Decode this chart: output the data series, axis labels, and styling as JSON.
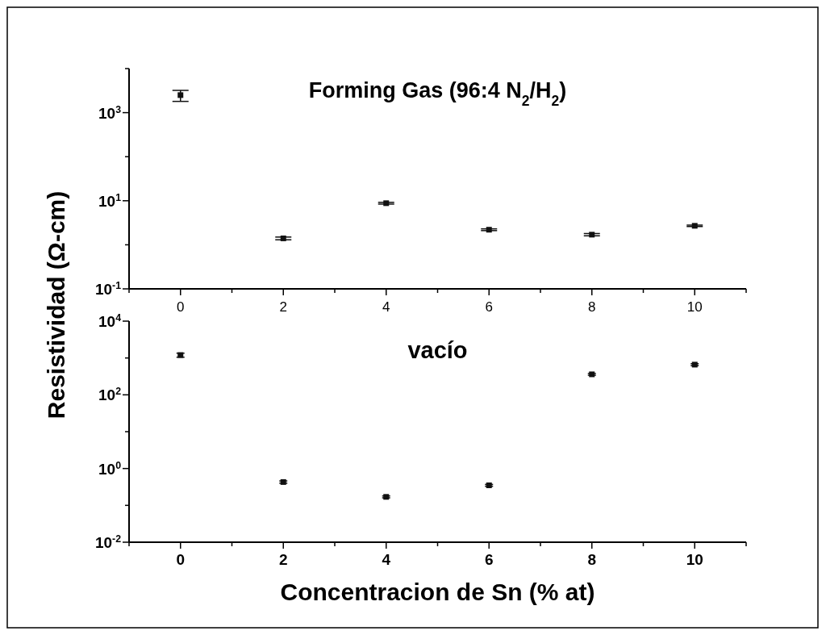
{
  "chart_data": [
    {
      "type": "scatter",
      "title": "Forming Gas (96:4 N$_{2}$/H$_{2}$)",
      "ylabel": "Resistividad (Ω-cm)",
      "x": [
        0,
        2,
        4,
        6,
        8,
        10
      ],
      "log": "y",
      "marker": "square",
      "color": "#111111",
      "values": [
        2500,
        1.4,
        8.8,
        2.2,
        1.7,
        2.7
      ],
      "errors": [
        [
          1800,
          3200
        ],
        [
          1.3,
          1.5
        ],
        [
          8.4,
          9.2
        ],
        [
          2.1,
          2.3
        ],
        [
          1.6,
          1.8
        ],
        [
          2.6,
          2.8
        ]
      ],
      "xlim": [
        -1,
        11
      ],
      "xticks": [
        {
          "value": -1,
          "label": null
        },
        0,
        {
          "value": 1,
          "label": null
        },
        2,
        {
          "value": 3,
          "label": null
        },
        4,
        {
          "value": 5,
          "label": null
        },
        6,
        {
          "value": 7,
          "label": null
        },
        8,
        {
          "value": 9,
          "label": null
        },
        10,
        {
          "value": 11,
          "label": null
        }
      ],
      "ylim": [
        0.1,
        10000
      ],
      "yticks": [
        {
          "value": 0.1,
          "label": "10$^{-1}$"
        },
        {
          "value": 1,
          "label": null
        },
        {
          "value": 10,
          "label": "10$^{1}$"
        },
        {
          "value": 100,
          "label": null
        },
        {
          "value": 1000,
          "label": "10$^{3}$"
        },
        {
          "value": 10000,
          "label": null
        }
      ]
    },
    {
      "type": "scatter",
      "title": "vacío",
      "xlabel": "Concentracion de Sn (% at)",
      "x": [
        0,
        2,
        4,
        6,
        8,
        10
      ],
      "log": "y",
      "marker": "square",
      "color": "#111111",
      "values": [
        1200,
        0.43,
        0.17,
        0.35,
        360,
        660
      ],
      "errors": [
        [
          1050,
          1350
        ],
        [
          0.4,
          0.46
        ],
        [
          0.16,
          0.18
        ],
        [
          0.33,
          0.37
        ],
        [
          340,
          380
        ],
        [
          620,
          700
        ]
      ],
      "xlim": [
        -1,
        11
      ],
      "xticks": [
        {
          "value": -1,
          "label": null
        },
        0,
        {
          "value": 1,
          "label": null
        },
        2,
        {
          "value": 3,
          "label": null
        },
        4,
        {
          "value": 5,
          "label": null
        },
        6,
        {
          "value": 7,
          "label": null
        },
        8,
        {
          "value": 9,
          "label": null
        },
        10,
        {
          "value": 11,
          "label": null
        }
      ],
      "ylim": [
        0.01,
        10000
      ],
      "yticks": [
        {
          "value": 0.01,
          "label": "10$^{-2}$"
        },
        {
          "value": 0.1,
          "label": null
        },
        {
          "value": 1,
          "label": "10$^{0}$"
        },
        {
          "value": 10,
          "label": null
        },
        {
          "value": 100,
          "label": "10$^{2}$"
        },
        {
          "value": 1000,
          "label": null
        },
        {
          "value": 10000,
          "label": "10$^{4}$"
        }
      ]
    }
  ]
}
